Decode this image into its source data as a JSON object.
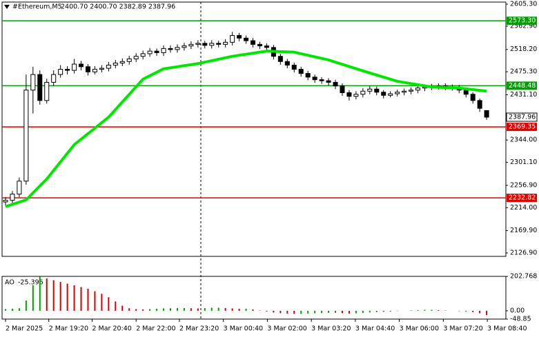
{
  "chart_data": {
    "type": "candlestick",
    "title": "#Ethereum,M5",
    "info": "2400.70 2400.70 2382.89 2387.96",
    "open": [
      2225,
      2228,
      2240,
      2265,
      2440,
      2470,
      2420,
      2455,
      2470,
      2480,
      2478,
      2490,
      2485,
      2475,
      2480,
      2482,
      2488,
      2492,
      2495,
      2500,
      2505,
      2510,
      2515,
      2512,
      2520,
      2518,
      2522,
      2525,
      2528,
      2530,
      2526,
      2530,
      2528,
      2532,
      2545,
      2540,
      2535,
      2528,
      2525,
      2522,
      2505,
      2495,
      2488,
      2480,
      2472,
      2465,
      2460,
      2458,
      2455,
      2448,
      2435,
      2428,
      2432,
      2438,
      2442,
      2436,
      2430,
      2433,
      2436,
      2438,
      2440,
      2444,
      2446,
      2447,
      2448,
      2446,
      2445,
      2440,
      2432,
      2420,
      2400.7
    ],
    "high": [
      2234,
      2246,
      2272,
      2470,
      2485,
      2478,
      2462,
      2478,
      2488,
      2486,
      2500,
      2496,
      2490,
      2486,
      2488,
      2494,
      2498,
      2501,
      2506,
      2511,
      2516,
      2521,
      2520,
      2526,
      2526,
      2528,
      2531,
      2534,
      2536,
      2535,
      2536,
      2535,
      2538,
      2552,
      2550,
      2545,
      2540,
      2533,
      2530,
      2527,
      2510,
      2500,
      2493,
      2485,
      2477,
      2470,
      2465,
      2463,
      2460,
      2453,
      2440,
      2438,
      2444,
      2448,
      2447,
      2440,
      2438,
      2441,
      2443,
      2445,
      2449,
      2451,
      2452,
      2453,
      2453,
      2451,
      2450,
      2444,
      2436,
      2424,
      2400.7
    ],
    "low": [
      2218,
      2222,
      2234,
      2258,
      2395,
      2412,
      2414,
      2448,
      2464,
      2470,
      2472,
      2478,
      2468,
      2470,
      2474,
      2476,
      2482,
      2486,
      2489,
      2494,
      2499,
      2504,
      2506,
      2506,
      2512,
      2512,
      2516,
      2519,
      2522,
      2520,
      2520,
      2522,
      2522,
      2526,
      2534,
      2529,
      2522,
      2519,
      2516,
      2499,
      2489,
      2482,
      2474,
      2466,
      2459,
      2454,
      2452,
      2449,
      2442,
      2429,
      2420,
      2422,
      2426,
      2432,
      2430,
      2424,
      2426,
      2428,
      2430,
      2432,
      2434,
      2438,
      2440,
      2441,
      2440,
      2439,
      2434,
      2426,
      2414,
      2398,
      2382.89
    ],
    "close": [
      2228,
      2240,
      2265,
      2440,
      2470,
      2420,
      2455,
      2470,
      2480,
      2478,
      2490,
      2485,
      2475,
      2480,
      2482,
      2488,
      2492,
      2495,
      2500,
      2505,
      2510,
      2515,
      2512,
      2520,
      2518,
      2522,
      2525,
      2528,
      2530,
      2526,
      2530,
      2528,
      2532,
      2545,
      2540,
      2535,
      2528,
      2525,
      2522,
      2505,
      2495,
      2488,
      2480,
      2472,
      2465,
      2460,
      2458,
      2455,
      2448,
      2435,
      2428,
      2432,
      2438,
      2442,
      2436,
      2430,
      2433,
      2436,
      2438,
      2440,
      2444,
      2446,
      2447,
      2448,
      2446,
      2445,
      2440,
      2432,
      2420,
      2405,
      2387.96
    ],
    "moving_average": {
      "color": "#00e600",
      "x": [
        0,
        3,
        6,
        10,
        15,
        20,
        23,
        28,
        33,
        38,
        42,
        47,
        52,
        57,
        62,
        66,
        70
      ],
      "values": [
        2216,
        2229,
        2269,
        2335,
        2388,
        2461,
        2481,
        2491,
        2505,
        2515,
        2513,
        2498,
        2477,
        2457,
        2446,
        2444,
        2438
      ]
    },
    "levels": [
      {
        "value": 2573.3,
        "label": "2573.30",
        "color": "#00a000"
      },
      {
        "value": 2448.48,
        "label": "2448.48",
        "color": "#00a000"
      },
      {
        "value": 2369.35,
        "label": "2369.35",
        "color": "#e00000"
      },
      {
        "value": 2232.82,
        "label": "2232.82",
        "color": "#e00000"
      }
    ],
    "ylim": [
      2120.3,
      2609.3
    ],
    "yticks": [
      {
        "value": 2605.3,
        "label": "2605.30"
      },
      {
        "value": 2562.9,
        "label": "2562.90"
      },
      {
        "value": 2518.2,
        "label": "2518.20"
      },
      {
        "value": 2475.3,
        "label": "2475.30"
      },
      {
        "value": 2431.1,
        "label": "2431.10"
      },
      {
        "value": 2344,
        "label": "2344.00"
      },
      {
        "value": 2301.1,
        "label": "2301.10"
      },
      {
        "value": 2256.9,
        "label": "2256.90"
      },
      {
        "value": 2214,
        "label": "2214.00"
      },
      {
        "value": 2169.9,
        "label": "2169.90"
      },
      {
        "value": 2126.9,
        "label": "2126.90"
      }
    ],
    "xlim": [
      -0.5,
      72.8
    ],
    "xticks": [
      {
        "value": 0,
        "label": "2 Mar 2025"
      },
      {
        "value": 6.3,
        "label": "2 Mar 19:20"
      },
      {
        "value": 12.6,
        "label": "2 Mar 20:40"
      },
      {
        "value": 19,
        "label": "2 Mar 22:00"
      },
      {
        "value": 25.3,
        "label": "2 Mar 23:20"
      },
      {
        "value": 31.7,
        "label": "3 Mar 00:40"
      },
      {
        "value": 38.1,
        "label": "3 Mar 02:00"
      },
      {
        "value": 44.5,
        "label": "3 Mar 03:20"
      },
      {
        "value": 50.9,
        "label": "3 Mar 04:40"
      },
      {
        "value": 57.3,
        "label": "3 Mar 06:00"
      },
      {
        "value": 63.7,
        "label": "3 Mar 07:20"
      },
      {
        "value": 70.1,
        "label": "3 Mar 08:40"
      }
    ],
    "oscillator": {
      "name": "AO",
      "up_color": "#00a000",
      "down_color": "#d00000",
      "values": [
        10,
        12,
        15,
        60,
        150,
        200,
        190,
        180,
        170,
        160,
        150,
        140,
        130,
        115,
        100,
        80,
        55,
        30,
        15,
        10,
        8,
        10,
        12,
        14,
        15,
        16,
        16,
        15,
        14,
        16,
        18,
        18,
        16,
        14,
        12,
        12,
        8,
        2,
        -4,
        -10,
        -14,
        -16,
        -18,
        -18,
        -16,
        -15,
        -14,
        -12,
        -12,
        -14,
        -16,
        -15,
        -13,
        -10,
        -8,
        -6,
        -4,
        -2,
        0,
        2,
        4,
        6,
        6,
        4,
        2,
        0,
        -2,
        -4,
        -8,
        -15,
        -25.396
      ],
      "ylim": [
        -48.85,
        202.768
      ],
      "yticks": [
        202.768,
        {
          "value": 0,
          "label": "0.00"
        },
        -48.85
      ]
    }
  }
}
